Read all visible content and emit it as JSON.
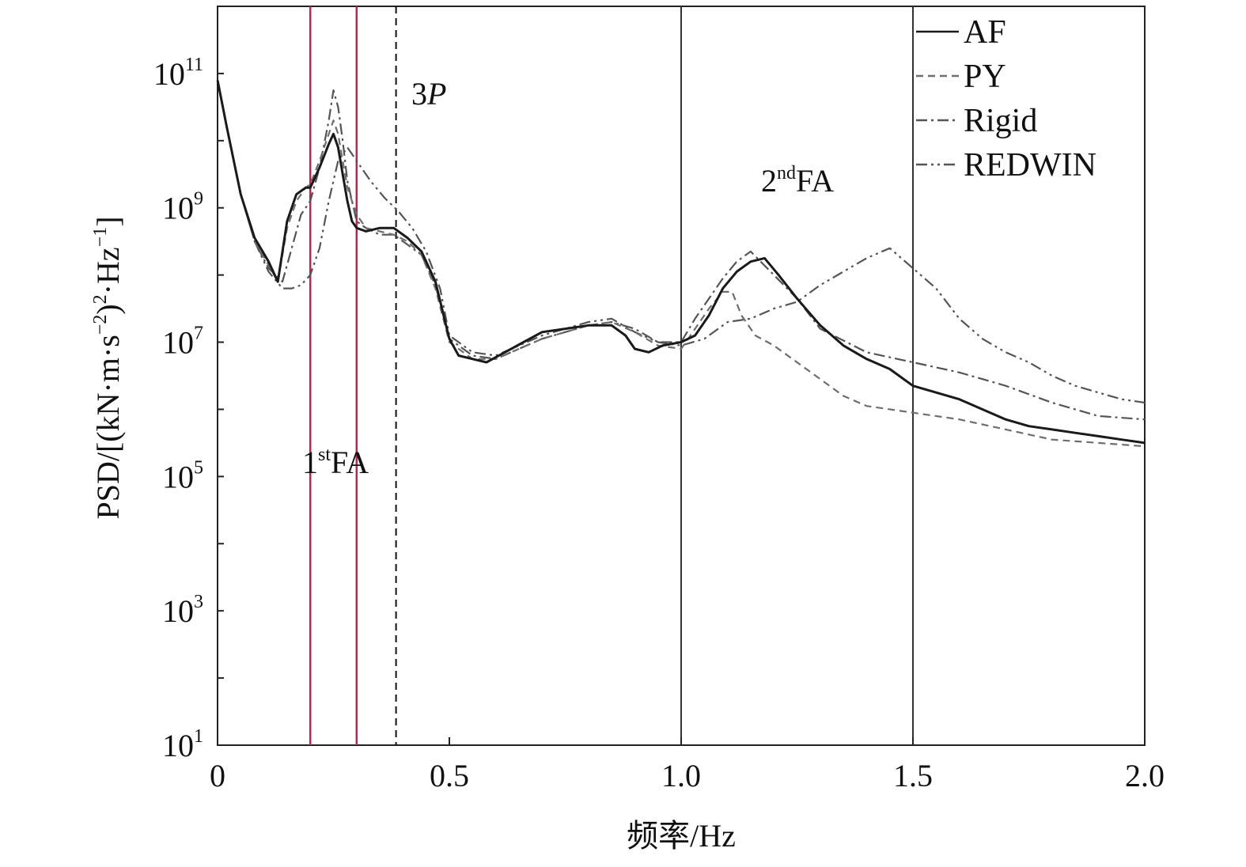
{
  "chart_data": {
    "type": "line",
    "title": "",
    "xlabel": "频率/Hz",
    "ylabel": {
      "base": "PSD/[(kN·m·s",
      "exp1": "−2",
      "mid": ")",
      "exp2": "2",
      "end": "·Hz",
      "exp3": "−1",
      "close": "]"
    },
    "xlim": [
      0,
      2.0
    ],
    "ylim_log10": [
      1,
      12
    ],
    "y_scale": "log",
    "x_ticks": [
      "0",
      "0.5",
      "1.0",
      "1.5",
      "2.0"
    ],
    "x_tick_values": [
      0,
      0.5,
      1.0,
      1.5,
      2.0
    ],
    "y_tick_labels": [
      {
        "base": "10",
        "exp": "1",
        "value": 1
      },
      {
        "base": "10",
        "exp": "3",
        "value": 3
      },
      {
        "base": "10",
        "exp": "5",
        "value": 5
      },
      {
        "base": "10",
        "exp": "7",
        "value": 7
      },
      {
        "base": "10",
        "exp": "9",
        "value": 9
      },
      {
        "base": "10",
        "exp": "11",
        "value": 11
      }
    ],
    "legend": {
      "position": "top-right",
      "entries": [
        {
          "name": "AF",
          "style": "solid",
          "color": "#1a1a1a"
        },
        {
          "name": "PY",
          "style": "dashed",
          "color": "#6e6e6e"
        },
        {
          "name": "Rigid",
          "style": "dashdot",
          "color": "#555555"
        },
        {
          "name": "REDWIN",
          "style": "dashdotdot",
          "color": "#555555"
        }
      ]
    },
    "vertical_lines": [
      {
        "x": 0.2,
        "color": "#c8204a",
        "style": "solid"
      },
      {
        "x": 0.3,
        "color": "#c8204a",
        "style": "solid"
      },
      {
        "x": 0.385,
        "color": "#111111",
        "style": "dashed"
      },
      {
        "x": 1.0,
        "color": "#333333",
        "style": "solid"
      },
      {
        "x": 1.5,
        "color": "#333333",
        "style": "solid"
      }
    ],
    "annotations": [
      {
        "id": "3p",
        "num": "3",
        "italic": "P"
      },
      {
        "id": "1fa",
        "num": "1",
        "sup": "st",
        "text": "FA"
      },
      {
        "id": "2fa",
        "num": "2",
        "sup": "nd",
        "text": "FA"
      }
    ],
    "series": [
      {
        "name": "AF",
        "x": [
          0.0,
          0.02,
          0.05,
          0.08,
          0.11,
          0.13,
          0.15,
          0.17,
          0.19,
          0.2,
          0.22,
          0.24,
          0.25,
          0.26,
          0.27,
          0.28,
          0.29,
          0.3,
          0.32,
          0.35,
          0.38,
          0.41,
          0.44,
          0.47,
          0.5,
          0.52,
          0.55,
          0.58,
          0.62,
          0.66,
          0.7,
          0.75,
          0.8,
          0.85,
          0.88,
          0.9,
          0.93,
          0.96,
          1.0,
          1.03,
          1.06,
          1.09,
          1.12,
          1.15,
          1.18,
          1.21,
          1.25,
          1.3,
          1.35,
          1.4,
          1.45,
          1.5,
          1.55,
          1.6,
          1.65,
          1.7,
          1.75,
          1.8,
          1.85,
          1.9,
          1.95,
          2.0
        ],
        "log_y": [
          10.9,
          10.2,
          9.2,
          8.55,
          8.2,
          7.9,
          8.8,
          9.2,
          9.3,
          9.3,
          9.6,
          9.95,
          10.1,
          9.9,
          9.5,
          9.1,
          8.8,
          8.7,
          8.65,
          8.7,
          8.7,
          8.55,
          8.35,
          7.9,
          7.05,
          6.8,
          6.75,
          6.7,
          6.85,
          7.0,
          7.15,
          7.2,
          7.25,
          7.25,
          7.1,
          6.9,
          6.85,
          6.95,
          7.0,
          7.1,
          7.4,
          7.8,
          8.05,
          8.2,
          8.25,
          8.0,
          7.65,
          7.25,
          6.95,
          6.75,
          6.6,
          6.35,
          6.25,
          6.15,
          6.0,
          5.85,
          5.75,
          5.7,
          5.65,
          5.6,
          5.55,
          5.5
        ]
      },
      {
        "name": "PY",
        "x": [
          0.0,
          0.02,
          0.05,
          0.08,
          0.11,
          0.13,
          0.15,
          0.17,
          0.19,
          0.2,
          0.22,
          0.24,
          0.25,
          0.26,
          0.27,
          0.28,
          0.3,
          0.32,
          0.35,
          0.38,
          0.41,
          0.44,
          0.47,
          0.5,
          0.55,
          0.6,
          0.65,
          0.7,
          0.75,
          0.8,
          0.85,
          0.9,
          0.95,
          1.0,
          1.03,
          1.06,
          1.09,
          1.11,
          1.13,
          1.16,
          1.2,
          1.25,
          1.3,
          1.35,
          1.4,
          1.5,
          1.6,
          1.7,
          1.8,
          1.9,
          2.0
        ],
        "log_y": [
          10.9,
          10.2,
          9.2,
          8.5,
          8.15,
          7.9,
          8.7,
          9.1,
          9.3,
          9.35,
          9.7,
          10.1,
          10.3,
          10.1,
          9.7,
          9.3,
          8.9,
          8.7,
          8.65,
          8.6,
          8.5,
          8.3,
          7.8,
          7.0,
          6.75,
          6.75,
          6.9,
          7.05,
          7.15,
          7.25,
          7.3,
          7.15,
          6.95,
          6.9,
          7.2,
          7.5,
          7.75,
          7.75,
          7.4,
          7.1,
          6.95,
          6.7,
          6.45,
          6.2,
          6.05,
          5.95,
          5.85,
          5.7,
          5.55,
          5.5,
          5.45
        ]
      },
      {
        "name": "Rigid",
        "x": [
          0.0,
          0.02,
          0.05,
          0.08,
          0.11,
          0.14,
          0.16,
          0.18,
          0.2,
          0.22,
          0.24,
          0.25,
          0.26,
          0.27,
          0.28,
          0.3,
          0.32,
          0.35,
          0.38,
          0.41,
          0.44,
          0.47,
          0.5,
          0.55,
          0.6,
          0.65,
          0.7,
          0.75,
          0.8,
          0.85,
          0.9,
          0.95,
          1.0,
          1.03,
          1.06,
          1.09,
          1.12,
          1.15,
          1.2,
          1.25,
          1.3,
          1.4,
          1.5,
          1.6,
          1.7,
          1.8,
          1.9,
          2.0
        ],
        "log_y": [
          10.9,
          10.2,
          9.2,
          8.5,
          8.1,
          7.9,
          8.4,
          8.9,
          9.1,
          9.6,
          10.3,
          10.75,
          10.5,
          10.0,
          9.4,
          8.8,
          8.7,
          8.6,
          8.6,
          8.45,
          8.3,
          7.85,
          7.05,
          6.8,
          6.75,
          6.9,
          7.05,
          7.15,
          7.25,
          7.3,
          7.2,
          7.0,
          7.0,
          7.35,
          7.65,
          7.95,
          8.2,
          8.35,
          8.0,
          7.65,
          7.2,
          6.85,
          6.7,
          6.55,
          6.35,
          6.1,
          5.9,
          5.85
        ]
      },
      {
        "name": "REDWIN",
        "x": [
          0.0,
          0.02,
          0.05,
          0.08,
          0.11,
          0.14,
          0.16,
          0.18,
          0.2,
          0.22,
          0.24,
          0.26,
          0.28,
          0.3,
          0.33,
          0.36,
          0.39,
          0.42,
          0.45,
          0.48,
          0.5,
          0.55,
          0.6,
          0.65,
          0.7,
          0.75,
          0.8,
          0.85,
          0.9,
          0.95,
          1.0,
          1.05,
          1.1,
          1.15,
          1.2,
          1.25,
          1.3,
          1.35,
          1.4,
          1.45,
          1.5,
          1.55,
          1.6,
          1.65,
          1.7,
          1.75,
          1.8,
          1.85,
          1.9,
          1.95,
          2.0
        ],
        "log_y": [
          10.9,
          10.2,
          9.2,
          8.5,
          8.05,
          7.8,
          7.8,
          7.85,
          8.0,
          8.4,
          9.1,
          9.7,
          9.9,
          9.7,
          9.4,
          9.15,
          8.95,
          8.7,
          8.35,
          7.8,
          7.1,
          6.85,
          6.8,
          6.95,
          7.1,
          7.2,
          7.3,
          7.35,
          7.15,
          7.0,
          6.95,
          7.05,
          7.3,
          7.35,
          7.5,
          7.6,
          7.85,
          8.05,
          8.25,
          8.4,
          8.1,
          7.8,
          7.35,
          7.05,
          6.85,
          6.7,
          6.5,
          6.35,
          6.25,
          6.15,
          6.1
        ]
      }
    ]
  }
}
